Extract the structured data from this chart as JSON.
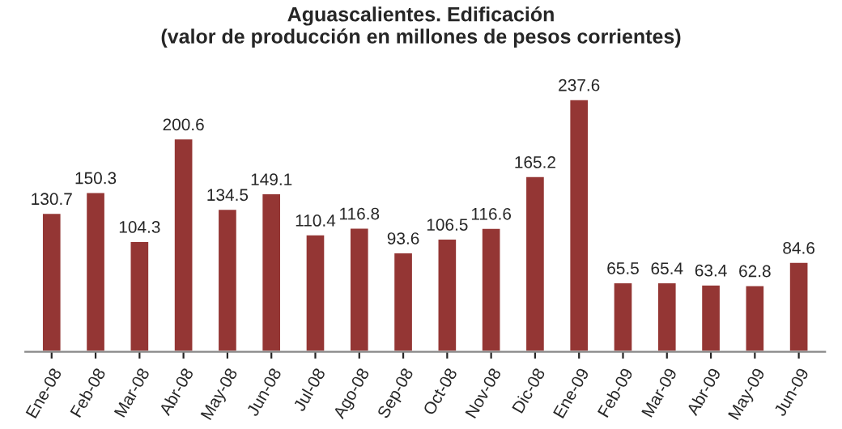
{
  "chart_data": {
    "type": "bar",
    "title": "Aguascalientes. Edificación\n(valor de producción en millones de pesos corrientes)",
    "categories": [
      "Ene-08",
      "Feb-08",
      "Mar-08",
      "Abr-08",
      "May-08",
      "Jun-08",
      "Jul-08",
      "Ago-08",
      "Sep-08",
      "Oct-08",
      "Nov-08",
      "Dic-08",
      "Ene-09",
      "Feb-09",
      "Mar-09",
      "Abr-09",
      "May-09",
      "Jun-09"
    ],
    "values": [
      130.7,
      150.3,
      104.3,
      200.6,
      134.5,
      149.1,
      110.4,
      116.8,
      93.6,
      106.5,
      116.6,
      165.2,
      237.6,
      65.5,
      65.4,
      63.4,
      62.8,
      84.6
    ],
    "color": "#943634",
    "data_labels": true,
    "tick_labels": "x",
    "grid": false,
    "legend": false
  }
}
